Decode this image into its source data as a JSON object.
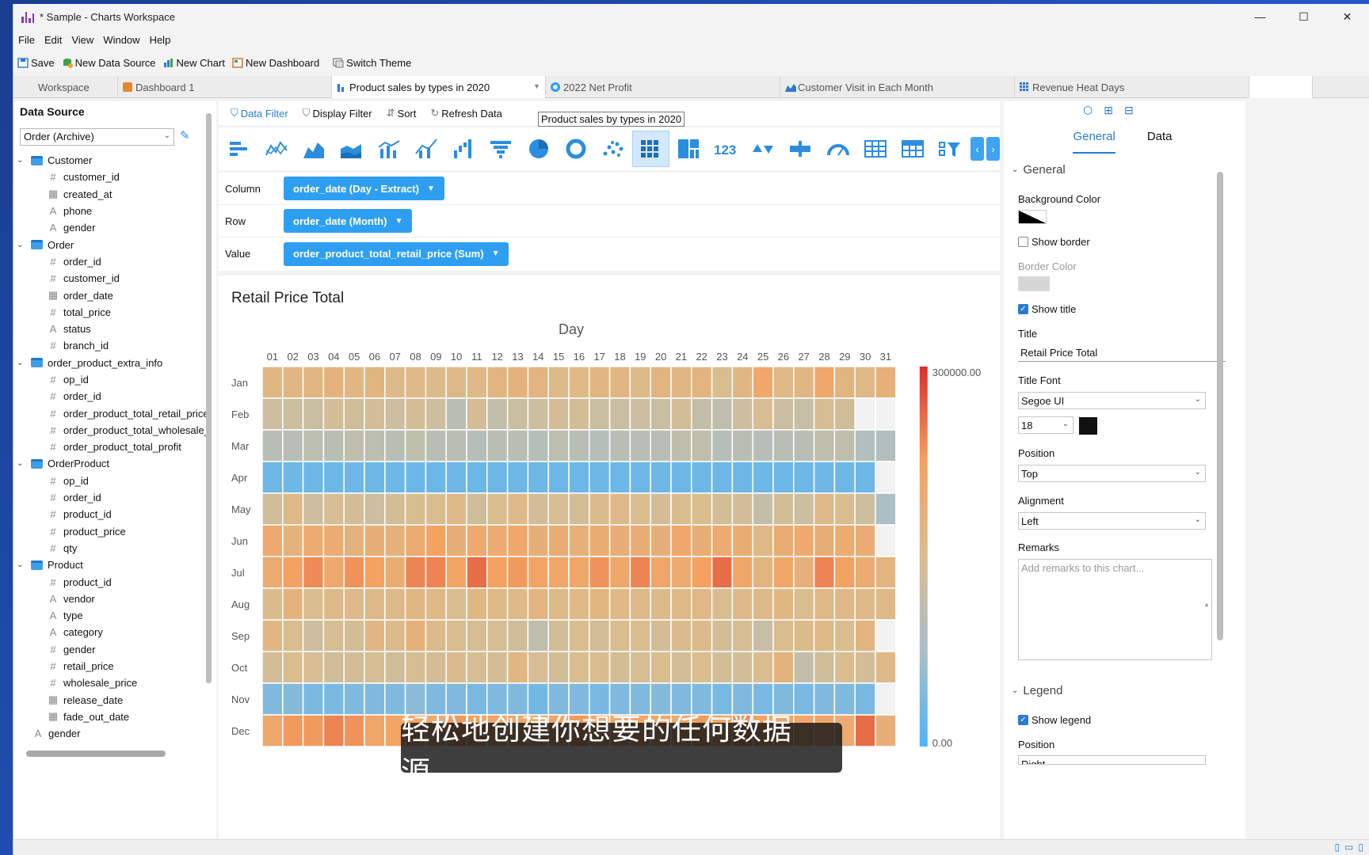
{
  "window": {
    "title": "* Sample - Charts Workspace",
    "min": "—",
    "max": "☐",
    "close": "✕"
  },
  "menu": [
    "File",
    "Edit",
    "View",
    "Window",
    "Help"
  ],
  "toolbar": {
    "save": "Save",
    "new_data_source": "New Data Source",
    "new_chart": "New Chart",
    "new_dashboard": "New Dashboard",
    "switch_theme": "Switch Theme"
  },
  "tabs": [
    {
      "label": "Workspace"
    },
    {
      "label": "Dashboard 1"
    },
    {
      "label": "Product sales by types in 2020"
    },
    {
      "label": "2022 Net Profit"
    },
    {
      "label": "Customer Visit in Each Month"
    },
    {
      "label": "Revenue Heat Days"
    }
  ],
  "data_source": {
    "title": "Data Source",
    "selected": "Order (Archive)",
    "tree": [
      {
        "kind": "table",
        "label": "Customer"
      },
      {
        "kind": "field",
        "icon": "#",
        "label": "customer_id"
      },
      {
        "kind": "field",
        "icon": "▦",
        "label": "created_at"
      },
      {
        "kind": "field",
        "icon": "A",
        "label": "phone"
      },
      {
        "kind": "field",
        "icon": "A",
        "label": "gender"
      },
      {
        "kind": "table",
        "label": "Order"
      },
      {
        "kind": "field",
        "icon": "#",
        "label": "order_id"
      },
      {
        "kind": "field",
        "icon": "#",
        "label": "customer_id"
      },
      {
        "kind": "field",
        "icon": "▦",
        "label": "order_date"
      },
      {
        "kind": "field",
        "icon": "#",
        "label": "total_price"
      },
      {
        "kind": "field",
        "icon": "A",
        "label": "status"
      },
      {
        "kind": "field",
        "icon": "#",
        "label": "branch_id"
      },
      {
        "kind": "table",
        "label": "order_product_extra_info"
      },
      {
        "kind": "field",
        "icon": "#",
        "label": "op_id"
      },
      {
        "kind": "field",
        "icon": "#",
        "label": "order_id"
      },
      {
        "kind": "field",
        "icon": "#",
        "label": "order_product_total_retail_price"
      },
      {
        "kind": "field",
        "icon": "#",
        "label": "order_product_total_wholesale_"
      },
      {
        "kind": "field",
        "icon": "#",
        "label": "order_product_total_profit"
      },
      {
        "kind": "table",
        "label": "OrderProduct"
      },
      {
        "kind": "field",
        "icon": "#",
        "label": "op_id"
      },
      {
        "kind": "field",
        "icon": "#",
        "label": "order_id"
      },
      {
        "kind": "field",
        "icon": "#",
        "label": "product_id"
      },
      {
        "kind": "field",
        "icon": "#",
        "label": "product_price"
      },
      {
        "kind": "field",
        "icon": "#",
        "label": "qty"
      },
      {
        "kind": "table",
        "label": "Product"
      },
      {
        "kind": "field",
        "icon": "#",
        "label": "product_id"
      },
      {
        "kind": "field",
        "icon": "A",
        "label": "vendor"
      },
      {
        "kind": "field",
        "icon": "A",
        "label": "type"
      },
      {
        "kind": "field",
        "icon": "A",
        "label": "category"
      },
      {
        "kind": "field",
        "icon": "#",
        "label": "gender"
      },
      {
        "kind": "field",
        "icon": "#",
        "label": "retail_price"
      },
      {
        "kind": "field",
        "icon": "#",
        "label": "wholesale_price"
      },
      {
        "kind": "field",
        "icon": "▦",
        "label": "release_date"
      },
      {
        "kind": "field",
        "icon": "▦",
        "label": "fade_out_date"
      },
      {
        "kind": "root",
        "icon": "A",
        "label": "gender"
      }
    ]
  },
  "filter_bar": {
    "data_filter": "Data Filter",
    "display_filter": "Display Filter",
    "sort": "Sort",
    "refresh": "Refresh Data",
    "tooltip": "Product sales by types in 2020"
  },
  "chart_types": [
    "bar",
    "line",
    "area",
    "stacked-area",
    "combo",
    "line-bar",
    "waterfall",
    "funnel",
    "pie",
    "donut",
    "scatter",
    "heatmap",
    "treemap",
    "number",
    "kpi-arrows",
    "bullet",
    "gauge",
    "table",
    "pivot-table",
    "filter"
  ],
  "shelves": {
    "column": {
      "label": "Column",
      "value": "order_date (Day - Extract)"
    },
    "row": {
      "label": "Row",
      "value": "order_date (Month)"
    },
    "value": {
      "label": "Value",
      "value": "order_product_total_retail_price (Sum)"
    }
  },
  "chart_data": {
    "type": "heatmap",
    "title": "Retail Price Total",
    "xlabel": "Day",
    "x": [
      "01",
      "02",
      "03",
      "04",
      "05",
      "06",
      "07",
      "08",
      "09",
      "10",
      "11",
      "12",
      "13",
      "14",
      "15",
      "16",
      "17",
      "18",
      "19",
      "20",
      "21",
      "22",
      "23",
      "24",
      "25",
      "26",
      "27",
      "28",
      "29",
      "30",
      "31"
    ],
    "y": [
      "Jan",
      "Feb",
      "Mar",
      "Apr",
      "May",
      "Jun",
      "Jul",
      "Aug",
      "Sep",
      "Oct",
      "Nov",
      "Dec"
    ],
    "scale": {
      "min": 0.0,
      "max": 300000.0,
      "min_label": "0.00",
      "max_label": "300000.00",
      "colors": [
        "#4fb3f6",
        "#a9bfc8",
        "#d9bd8f",
        "#f4a262",
        "#d8302c"
      ]
    },
    "values": [
      [
        170000,
        170000,
        170000,
        180000,
        170000,
        175000,
        160000,
        165000,
        155000,
        160000,
        165000,
        175000,
        180000,
        175000,
        165000,
        165000,
        170000,
        170000,
        160000,
        175000,
        170000,
        175000,
        150000,
        170000,
        210000,
        165000,
        170000,
        210000,
        175000,
        165000,
        185000
      ],
      [
        130000,
        130000,
        125000,
        140000,
        135000,
        140000,
        130000,
        140000,
        130000,
        100000,
        140000,
        115000,
        125000,
        130000,
        140000,
        140000,
        125000,
        125000,
        130000,
        125000,
        140000,
        115000,
        110000,
        130000,
        145000,
        125000,
        120000,
        145000,
        135000,
        null,
        null
      ],
      [
        100000,
        100000,
        105000,
        100000,
        110000,
        105000,
        100000,
        110000,
        100000,
        100000,
        95000,
        100000,
        100000,
        95000,
        105000,
        100000,
        95000,
        100000,
        100000,
        100000,
        110000,
        110000,
        95000,
        100000,
        95000,
        100000,
        100000,
        110000,
        110000,
        90000,
        90000
      ],
      [
        25000,
        25000,
        25000,
        25000,
        25000,
        25000,
        25000,
        25000,
        25000,
        25000,
        25000,
        25000,
        25000,
        25000,
        25000,
        25000,
        25000,
        25000,
        25000,
        25000,
        25000,
        25000,
        25000,
        25000,
        25000,
        25000,
        25000,
        25000,
        25000,
        25000,
        null
      ],
      [
        135000,
        160000,
        130000,
        145000,
        140000,
        130000,
        140000,
        150000,
        150000,
        165000,
        135000,
        150000,
        160000,
        140000,
        145000,
        140000,
        155000,
        160000,
        150000,
        140000,
        150000,
        150000,
        140000,
        140000,
        115000,
        140000,
        130000,
        160000,
        150000,
        130000,
        80000
      ],
      [
        205000,
        180000,
        200000,
        200000,
        180000,
        190000,
        185000,
        200000,
        225000,
        190000,
        205000,
        200000,
        210000,
        190000,
        195000,
        185000,
        195000,
        190000,
        195000,
        190000,
        210000,
        190000,
        200000,
        195000,
        165000,
        195000,
        205000,
        190000,
        200000,
        195000,
        null
      ],
      [
        200000,
        225000,
        240000,
        205000,
        235000,
        225000,
        195000,
        245000,
        245000,
        220000,
        260000,
        225000,
        230000,
        220000,
        215000,
        215000,
        235000,
        210000,
        245000,
        215000,
        200000,
        225000,
        260000,
        215000,
        175000,
        215000,
        185000,
        245000,
        225000,
        200000,
        175000
      ],
      [
        155000,
        180000,
        150000,
        160000,
        160000,
        160000,
        160000,
        170000,
        165000,
        150000,
        170000,
        165000,
        160000,
        175000,
        165000,
        165000,
        175000,
        165000,
        165000,
        155000,
        165000,
        165000,
        150000,
        160000,
        160000,
        170000,
        150000,
        165000,
        165000,
        160000,
        165000
      ],
      [
        170000,
        150000,
        130000,
        145000,
        140000,
        170000,
        155000,
        185000,
        155000,
        150000,
        145000,
        145000,
        135000,
        110000,
        140000,
        150000,
        140000,
        150000,
        150000,
        140000,
        155000,
        155000,
        140000,
        145000,
        120000,
        150000,
        155000,
        165000,
        150000,
        175000,
        null
      ],
      [
        140000,
        150000,
        145000,
        135000,
        140000,
        145000,
        135000,
        145000,
        140000,
        155000,
        145000,
        140000,
        170000,
        145000,
        140000,
        150000,
        150000,
        140000,
        145000,
        150000,
        140000,
        150000,
        140000,
        140000,
        150000,
        180000,
        115000,
        135000,
        150000,
        140000,
        160000
      ],
      [
        40000,
        45000,
        35000,
        35000,
        40000,
        40000,
        40000,
        50000,
        40000,
        40000,
        35000,
        40000,
        40000,
        30000,
        40000,
        40000,
        35000,
        40000,
        40000,
        45000,
        40000,
        40000,
        35000,
        40000,
        35000,
        40000,
        35000,
        40000,
        40000,
        35000,
        null
      ],
      [
        210000,
        230000,
        230000,
        245000,
        235000,
        215000,
        220000,
        220000,
        200000,
        230000,
        225000,
        210000,
        205000,
        200000,
        220000,
        230000,
        210000,
        205000,
        215000,
        215000,
        200000,
        230000,
        220000,
        240000,
        220000,
        220000,
        210000,
        215000,
        200000,
        260000,
        190000
      ]
    ]
  },
  "properties": {
    "tabs": [
      "General",
      "Data"
    ],
    "general_header": "General",
    "background_color_label": "Background Color",
    "background_color": "#000000",
    "show_border": "Show border",
    "border_color_label": "Border Color",
    "show_title": "Show title",
    "title_label": "Title",
    "title_value": "Retail Price Total",
    "title_font_label": "Title Font",
    "title_font": "Segoe UI",
    "title_size": "18",
    "position_label": "Position",
    "position_value": "Top",
    "alignment_label": "Alignment",
    "alignment_value": "Left",
    "remarks_label": "Remarks",
    "remarks_placeholder": "Add remarks to this chart...",
    "legend_header": "Legend",
    "show_legend": "Show legend",
    "legend_position_label": "Position",
    "legend_position_value": "Right"
  },
  "subtitle": "轻松地创建你想要的任何数据源，"
}
